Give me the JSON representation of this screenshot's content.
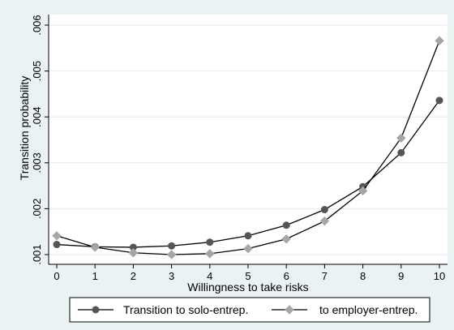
{
  "chart_data": {
    "type": "line",
    "title": "",
    "xlabel": "Willingness to take risks",
    "ylabel": "Transition probability",
    "x": [
      0,
      1,
      2,
      3,
      4,
      5,
      6,
      7,
      8,
      9,
      10
    ],
    "xlim": [
      0,
      10
    ],
    "ylim": [
      0.001,
      0.006
    ],
    "yticks": [
      ".001",
      ".002",
      ".003",
      ".004",
      ".005",
      ".006"
    ],
    "y_grid": true,
    "legend_position": "bottom",
    "series": [
      {
        "name": "Transition to solo-entrep.",
        "marker": "circle",
        "color": "#555555",
        "values": [
          0.00122,
          0.00117,
          0.00116,
          0.00119,
          0.00127,
          0.00141,
          0.00164,
          0.00198,
          0.00248,
          0.00322,
          0.00436
        ]
      },
      {
        "name": "to employer-entrep.",
        "marker": "diamond",
        "color": "#a6a6a6",
        "values": [
          0.00141,
          0.00116,
          0.00104,
          0.001,
          0.00102,
          0.00113,
          0.00134,
          0.00173,
          0.00239,
          0.00354,
          0.00566
        ]
      }
    ]
  }
}
